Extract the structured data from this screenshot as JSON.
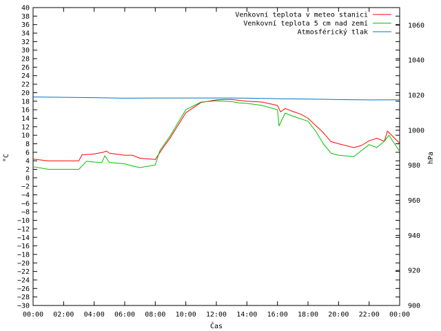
{
  "chart_data": {
    "type": "line",
    "xlabel": "Čas",
    "ylabel": "°C",
    "y2label": "hPa",
    "grid": false,
    "legend_position": "top-right",
    "x_ticks": [
      "00:00",
      "02:00",
      "04:00",
      "06:00",
      "08:00",
      "10:00",
      "12:00",
      "14:00",
      "16:00",
      "18:00",
      "20:00",
      "22:00",
      "00:00"
    ],
    "x_range_hours": [
      0,
      24
    ],
    "ylim": [
      -30,
      40
    ],
    "y_ticks": [
      -30,
      -28,
      -26,
      -24,
      -22,
      -20,
      -18,
      -16,
      -14,
      -12,
      -10,
      -8,
      -6,
      -4,
      -2,
      0,
      2,
      4,
      6,
      8,
      10,
      12,
      14,
      16,
      18,
      20,
      22,
      24,
      26,
      28,
      30,
      32,
      34,
      36,
      38,
      40
    ],
    "y2lim": [
      900,
      1070
    ],
    "y2_ticks": [
      900,
      920,
      940,
      960,
      980,
      1000,
      1020,
      1040,
      1060
    ],
    "series": [
      {
        "name": "Venkovní teplota v meteo stanici",
        "axis": "y1",
        "color": "#ff0000",
        "x": [
          0,
          1,
          2,
          3,
          3.2,
          4,
          4.6,
          4.8,
          5,
          6,
          6.5,
          7,
          8,
          8.5,
          9,
          10,
          11,
          12,
          12.5,
          13,
          13.5,
          14,
          15,
          15.5,
          16,
          16.2,
          16.5,
          17,
          17.5,
          18,
          19,
          19.5,
          20,
          21,
          21.5,
          22,
          22.5,
          23,
          23.2,
          24
        ],
        "values": [
          4.4,
          4,
          4,
          4,
          5.4,
          5.6,
          6,
          6.3,
          5.8,
          5.3,
          5.3,
          4.6,
          4.3,
          7,
          9.5,
          15.3,
          17.7,
          18.3,
          18.4,
          18.4,
          18.2,
          18,
          17.8,
          17.4,
          17,
          15.5,
          16.3,
          15.6,
          15,
          14,
          10.6,
          8.5,
          8,
          7.1,
          7.6,
          8.7,
          9.3,
          8.6,
          11,
          8.1
        ]
      },
      {
        "name": "Venkovní teplota 5 cm nad zemí",
        "axis": "y1",
        "color": "#00c000",
        "x": [
          0,
          1,
          2,
          3,
          3.5,
          4,
          4.5,
          4.7,
          5,
          6,
          6.5,
          7,
          8,
          8.3,
          9,
          10,
          11,
          12,
          13,
          13.5,
          14,
          15,
          16,
          16.1,
          16.5,
          17,
          18,
          18.5,
          19,
          19.5,
          20,
          21,
          22,
          22.5,
          23,
          23.3,
          24
        ],
        "values": [
          2.6,
          2,
          2,
          2,
          3.9,
          3.7,
          3.6,
          5.2,
          3.6,
          3.3,
          2.8,
          2.4,
          3,
          6.4,
          10,
          16,
          17.8,
          18.1,
          17.9,
          17.6,
          17.5,
          17,
          16,
          12.2,
          15.2,
          14.5,
          13.3,
          11,
          8,
          5.8,
          5.3,
          5,
          7.8,
          7.1,
          8.6,
          10,
          6.2
        ]
      },
      {
        "name": "Atmosférický tlak",
        "axis": "y2",
        "color": "#0070c0",
        "x": [
          0,
          2,
          4,
          6,
          8,
          10,
          12,
          13,
          14,
          16,
          18,
          20,
          22,
          24
        ],
        "values": [
          1019,
          1018.8,
          1018.6,
          1018.3,
          1018.4,
          1018.4,
          1018.4,
          1018.4,
          1018.3,
          1018,
          1017.8,
          1017.5,
          1017.3,
          1017.4
        ]
      }
    ]
  }
}
